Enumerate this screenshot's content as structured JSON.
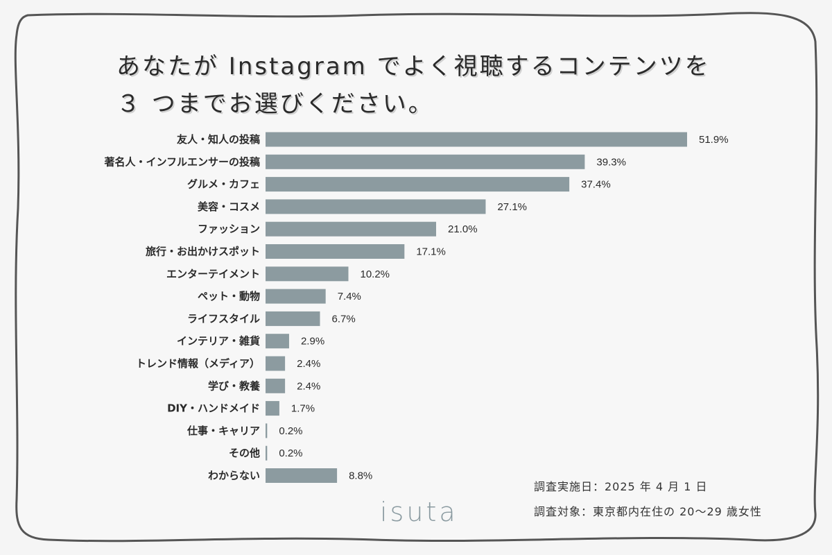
{
  "title": {
    "line1": "あなたが Instagram でよく視聴するコンテンツを",
    "line2": "３ つまでお選びください。"
  },
  "colors": {
    "bar": "#8c9ba0",
    "border": "#555555",
    "background": "#f5f5f5",
    "text": "#2a2a2a",
    "logo": "#8a9aa0"
  },
  "chart_data": {
    "type": "bar",
    "orientation": "horizontal",
    "unit": "%",
    "categories": [
      "友人・知人の投稿",
      "著名人・インフルエンサーの投稿",
      "グルメ・カフェ",
      "美容・コスメ",
      "ファッション",
      "旅行・お出かけスポット",
      "エンターテイメント",
      "ペット・動物",
      "ライフスタイル",
      "インテリア・雑貨",
      "トレンド情報（メディア）",
      "学び・教養",
      "DIY・ハンドメイド",
      "仕事・キャリア",
      "その他",
      "わからない"
    ],
    "values": [
      51.9,
      39.3,
      37.4,
      27.1,
      21.0,
      17.1,
      10.2,
      7.4,
      6.7,
      2.9,
      2.4,
      2.4,
      1.7,
      0.2,
      0.2,
      8.8
    ],
    "value_labels": [
      "51.9%",
      "39.3%",
      "37.4%",
      "27.1%",
      "21.0%",
      "17.1%",
      "10.2%",
      "7.4%",
      "6.7%",
      "2.9%",
      "2.4%",
      "2.4%",
      "1.7%",
      "0.2%",
      "0.2%",
      "8.8%"
    ],
    "xlim": [
      0,
      51.9
    ],
    "grid": false,
    "legend": false
  },
  "notes": {
    "date": "調査実施日：2025 年 4 月 1 日",
    "target": "調査対象：東京都内在住の 20〜29 歳女性"
  },
  "logo": {
    "text": "isuta"
  }
}
